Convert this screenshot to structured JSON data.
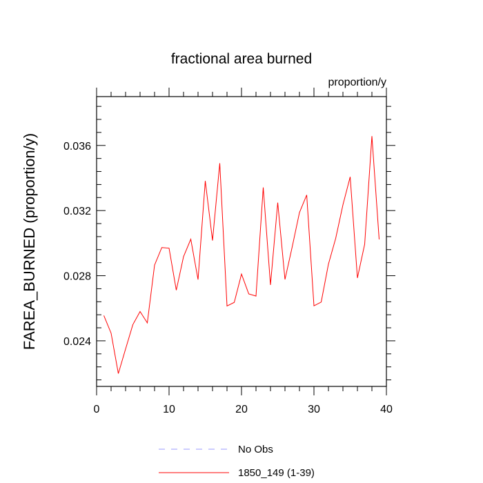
{
  "chart_data": {
    "type": "line",
    "title": "fractional area burned",
    "units_label": "proportion/y",
    "xlabel": "",
    "ylabel": "FAREA_BURNED  (proportion/y)",
    "xlim": [
      0,
      40
    ],
    "ylim": [
      0.0212,
      0.039
    ],
    "x_ticks": [
      0,
      10,
      20,
      30,
      40
    ],
    "x_tick_labels": [
      "0",
      "10",
      "20",
      "30",
      "40"
    ],
    "y_ticks": [
      0.024,
      0.028,
      0.032,
      0.036
    ],
    "y_tick_labels": [
      "0.024",
      "0.028",
      "0.032",
      "0.036"
    ],
    "grid": false,
    "legend_position": "bottom",
    "series": [
      {
        "name": "1850_149 (1-39)",
        "color": "#ff0000",
        "style": "solid",
        "x": [
          1,
          2,
          3,
          4,
          5,
          6,
          7,
          8,
          9,
          10,
          11,
          12,
          13,
          14,
          15,
          16,
          17,
          18,
          19,
          20,
          21,
          22,
          23,
          24,
          25,
          26,
          27,
          28,
          29,
          30,
          31,
          32,
          33,
          34,
          35,
          36,
          37,
          38,
          39
        ],
        "values": [
          0.02555,
          0.02447,
          0.02199,
          0.0235,
          0.02499,
          0.0258,
          0.0251,
          0.02865,
          0.02973,
          0.02969,
          0.02711,
          0.02917,
          0.03024,
          0.02776,
          0.03382,
          0.03016,
          0.03491,
          0.02614,
          0.02636,
          0.0281,
          0.02688,
          0.02675,
          0.03342,
          0.02743,
          0.03249,
          0.02777,
          0.02977,
          0.03188,
          0.03296,
          0.02615,
          0.02638,
          0.02871,
          0.03029,
          0.03235,
          0.03407,
          0.02786,
          0.02993,
          0.03657,
          0.03023
        ]
      }
    ],
    "legend": [
      {
        "name": "No Obs",
        "color": "#9999ff",
        "style": "dashed"
      },
      {
        "name": "1850_149 (1-39)",
        "color": "#ff0000",
        "style": "solid"
      }
    ]
  }
}
